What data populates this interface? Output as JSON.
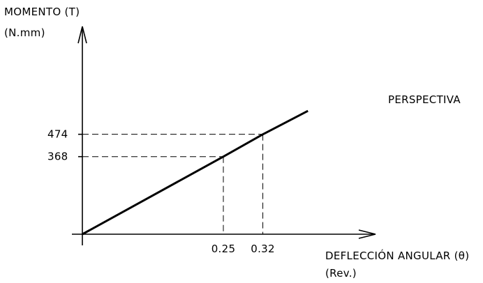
{
  "chart_data": {
    "type": "line",
    "ylabel": "MOMENTO (T)",
    "ylabel_unit": "(N.mm)",
    "xlabel": "DEFLECCIÓN ANGULAR (θ)",
    "xlabel_unit": "(Rev.)",
    "annotation": "PERSPECTIVA",
    "x": [
      0,
      0.25,
      0.32,
      0.4
    ],
    "y": [
      0,
      368,
      474,
      585
    ],
    "xlim": [
      0,
      0.57
    ],
    "ylim": [
      0,
      700
    ],
    "highlight_points": [
      {
        "x": 0.25,
        "y": 368,
        "x_label": "0.25",
        "y_label": "368"
      },
      {
        "x": 0.32,
        "y": 474,
        "x_label": "0.32",
        "y_label": "474"
      }
    ],
    "grid": false,
    "legend": "none"
  }
}
